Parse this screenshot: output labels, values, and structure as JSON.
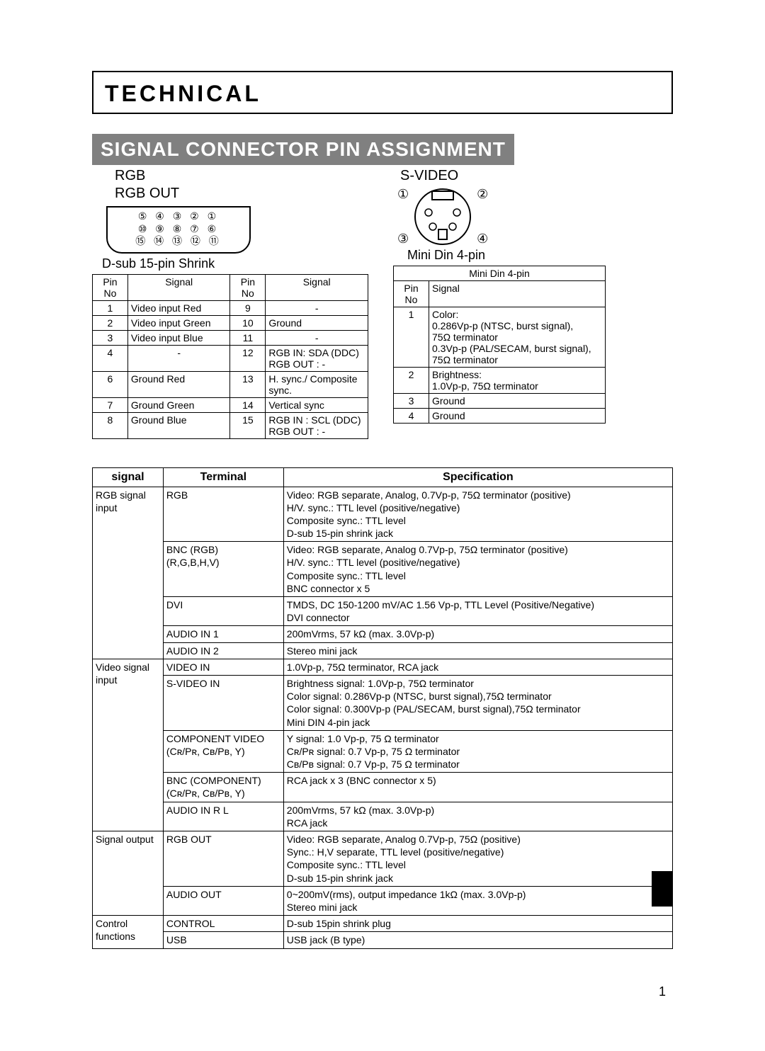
{
  "title": "TECHNICAL",
  "banner": "SIGNAL CONNECTOR PIN ASSIGNMENT",
  "rgb": {
    "heading1": "RGB",
    "heading2": "RGB OUT",
    "pins_row1": "⑤ ④ ③ ② ①",
    "pins_row2": "⑩ ⑨ ⑧ ⑦ ⑥",
    "pins_row3": "⑮ ⑭ ⑬ ⑫ ⑪",
    "sub": "D-sub 15-pin Shrink",
    "hdr_pin": "Pin No",
    "hdr_sig": "Signal",
    "rows_left": [
      [
        "1",
        "Video input Red"
      ],
      [
        "2",
        "Video input Green"
      ],
      [
        "3",
        "Video input Blue"
      ],
      [
        "4",
        "-"
      ],
      [
        "6",
        "Ground Red"
      ],
      [
        "7",
        "Ground Green"
      ],
      [
        "8",
        "Ground Blue"
      ]
    ],
    "rows_right": [
      [
        "9",
        "-"
      ],
      [
        "10",
        "Ground"
      ],
      [
        "11",
        "-"
      ],
      [
        "12",
        "RGB IN: SDA (DDC)\nRGB OUT :        -"
      ],
      [
        "13",
        "H. sync./ Composite sync."
      ],
      [
        "14",
        "Vertical sync"
      ],
      [
        "15",
        "RGB IN : SCL (DDC)\nRGB OUT :        -"
      ]
    ]
  },
  "svideo": {
    "heading": "S-VIDEO",
    "sub": "Mini Din 4-pin",
    "nums": {
      "n1": "①",
      "n2": "②",
      "n3": "③",
      "n4": "④"
    },
    "hdr_title": "Mini Din 4-pin",
    "hdr_pin": "Pin No",
    "hdr_sig": "Signal",
    "rows": [
      [
        "1",
        "Color:\n0.286Vp-p (NTSC, burst signal),\n75Ω terminator\n0.3Vp-p (PAL/SECAM, burst signal),\n75Ω terminator"
      ],
      [
        "2",
        "Brightness:\n1.0Vp-p, 75Ω terminator"
      ],
      [
        "3",
        "Ground"
      ],
      [
        "4",
        "Ground"
      ]
    ]
  },
  "spec": {
    "hdr_signal": "signal",
    "hdr_terminal": "Terminal",
    "hdr_spec": "Specification",
    "groups": [
      {
        "label": "RGB signal input",
        "rows": [
          [
            "RGB",
            "Video: RGB separate, Analog, 0.7Vp-p, 75Ω terminator (positive)\nH/V. sync.: TTL level (positive/negative)\nComposite sync.: TTL level\nD-sub 15-pin shrink jack"
          ],
          [
            "BNC (RGB)\n(R,G,B,H,V)",
            "Video: RGB separate, Analog 0.7Vp-p, 75Ω terminator (positive)\nH/V. sync.: TTL level (positive/negative)\nComposite sync.: TTL level\nBNC connector x 5"
          ],
          [
            "DVI",
            "TMDS, DC 150-1200 mV/AC 1.56 Vp-p, TTL Level (Positive/Negative)\nDVI connector"
          ],
          [
            "AUDIO IN 1",
            "200mVrms, 57 kΩ (max. 3.0Vp-p)"
          ],
          [
            "AUDIO IN 2",
            "Stereo mini jack"
          ]
        ]
      },
      {
        "label": "Video signal input",
        "rows": [
          [
            "VIDEO IN",
            "1.0Vp-p, 75Ω terminator, RCA jack"
          ],
          [
            "S-VIDEO IN",
            "Brightness signal: 1.0Vp-p, 75Ω terminator\nColor signal: 0.286Vp-p (NTSC, burst signal),75Ω terminator\nColor signal: 0.300Vp-p (PAL/SECAM, burst signal),75Ω terminator\nMini DIN 4-pin jack"
          ],
          [
            "COMPONENT VIDEO\n(Cʀ/Pʀ, Cʙ/Pʙ, Y)",
            "Y signal: 1.0 Vp-p, 75 Ω terminator\nCʀ/Pʀ signal: 0.7 Vp-p, 75 Ω terminator\nCʙ/Pʙ signal: 0.7 Vp-p, 75 Ω terminator"
          ],
          [
            "BNC (COMPONENT)\n(Cʀ/Pʀ, Cʙ/Pʙ, Y)",
            "RCA jack x 3 (BNC connector x 5)"
          ],
          [
            "AUDIO IN   R  L",
            "200mVrms, 57 kΩ (max. 3.0Vp-p)\nRCA jack"
          ]
        ]
      },
      {
        "label": "Signal output",
        "rows": [
          [
            "RGB OUT",
            "Video: RGB separate, Analog 0.7Vp-p, 75Ω (positive)\nSync.: H,V separate, TTL level (positive/negative)\nComposite sync.: TTL level\nD-sub 15-pin shrink jack"
          ],
          [
            "AUDIO OUT",
            "0~200mV(rms), output impedance 1kΩ (max. 3.0Vp-p)\nStereo mini jack"
          ]
        ]
      },
      {
        "label": "Control functions",
        "rows": [
          [
            "CONTROL",
            "D-sub 15pin shrink plug"
          ],
          [
            "USB",
            "USB jack (B type)"
          ]
        ]
      }
    ]
  },
  "page_no": "1"
}
